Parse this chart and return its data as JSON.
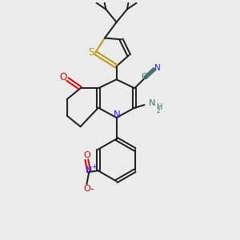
{
  "background_color": "#ebebeb",
  "bond_color": "#1a1a1a",
  "nitrogen_color": "#2020ff",
  "oxygen_color": "#dd0000",
  "sulfur_color": "#b8960c",
  "teal_color": "#407070",
  "figsize": [
    3.0,
    3.0
  ],
  "dpi": 100,
  "xlim": [
    0,
    10
  ],
  "ylim": [
    0,
    10
  ]
}
